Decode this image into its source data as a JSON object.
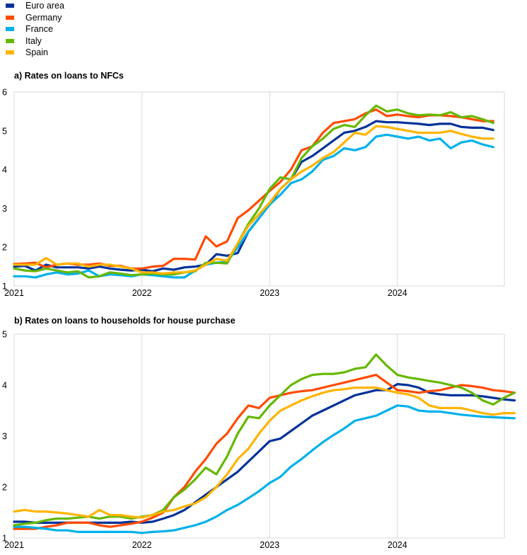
{
  "legend": [
    {
      "name": "Euro area",
      "color": "#003299"
    },
    {
      "name": "Germany",
      "color": "#FF4B00"
    },
    {
      "name": "France",
      "color": "#00B1EA"
    },
    {
      "name": "Italy",
      "color": "#65B800"
    },
    {
      "name": "Spain",
      "color": "#FFB400"
    }
  ],
  "chart_data": [
    {
      "type": "line",
      "title": "a) Rates on loans to NFCs",
      "xlabel": "",
      "ylabel": "",
      "ylim": [
        1,
        6
      ],
      "yticks": [
        1,
        2,
        3,
        4,
        5,
        6
      ],
      "xticks": [
        "2021",
        "2022",
        "2023",
        "2024"
      ],
      "x_start": "2021-01",
      "grid": "vertical",
      "series": [
        {
          "name": "Euro area",
          "color": "#003299",
          "values": [
            1.5,
            1.52,
            1.4,
            1.55,
            1.48,
            1.48,
            1.48,
            1.45,
            1.5,
            1.45,
            1.42,
            1.4,
            1.42,
            1.38,
            1.45,
            1.42,
            1.48,
            1.5,
            1.55,
            1.82,
            1.78,
            1.85,
            2.4,
            2.75,
            3.1,
            3.5,
            3.75,
            4.2,
            4.35,
            4.55,
            4.75,
            4.95,
            5.0,
            5.1,
            5.25,
            5.22,
            5.22,
            5.2,
            5.18,
            5.15,
            5.18,
            5.18,
            5.1,
            5.08,
            5.08,
            5.02
          ]
        },
        {
          "name": "Germany",
          "color": "#FF4B00",
          "values": [
            1.57,
            1.58,
            1.6,
            1.48,
            1.55,
            1.58,
            1.55,
            1.55,
            1.58,
            1.52,
            1.52,
            1.45,
            1.45,
            1.5,
            1.52,
            1.7,
            1.7,
            1.68,
            2.28,
            2.02,
            2.15,
            2.75,
            2.95,
            3.2,
            3.45,
            3.68,
            4.0,
            4.5,
            4.6,
            4.95,
            5.2,
            5.25,
            5.3,
            5.45,
            5.55,
            5.38,
            5.42,
            5.38,
            5.35,
            5.4,
            5.4,
            5.38,
            5.35,
            5.3,
            5.25,
            5.25
          ]
        },
        {
          "name": "France",
          "color": "#00B1EA",
          "values": [
            1.25,
            1.25,
            1.22,
            1.3,
            1.35,
            1.3,
            1.32,
            1.4,
            1.25,
            1.3,
            1.28,
            1.25,
            1.3,
            1.28,
            1.25,
            1.22,
            1.22,
            1.4,
            1.55,
            1.6,
            1.62,
            2.0,
            2.4,
            2.75,
            3.1,
            3.35,
            3.65,
            3.75,
            3.95,
            4.25,
            4.35,
            4.55,
            4.5,
            4.58,
            4.85,
            4.9,
            4.85,
            4.8,
            4.85,
            4.75,
            4.8,
            4.55,
            4.7,
            4.75,
            4.65,
            4.58
          ]
        },
        {
          "name": "Italy",
          "color": "#65B800",
          "values": [
            1.45,
            1.4,
            1.38,
            1.45,
            1.4,
            1.35,
            1.38,
            1.22,
            1.25,
            1.35,
            1.32,
            1.28,
            1.3,
            1.32,
            1.3,
            1.3,
            1.35,
            1.38,
            1.6,
            1.6,
            1.58,
            2.1,
            2.6,
            3.0,
            3.5,
            3.8,
            3.75,
            4.3,
            4.6,
            4.8,
            5.05,
            5.15,
            5.1,
            5.4,
            5.65,
            5.5,
            5.55,
            5.45,
            5.4,
            5.42,
            5.4,
            5.48,
            5.35,
            5.38,
            5.3,
            5.2
          ]
        },
        {
          "name": "Spain",
          "color": "#FFB400",
          "values": [
            1.55,
            1.55,
            1.55,
            1.72,
            1.55,
            1.58,
            1.58,
            1.5,
            1.55,
            1.55,
            1.5,
            1.45,
            1.35,
            1.35,
            1.32,
            1.35,
            1.35,
            1.4,
            1.55,
            1.7,
            1.65,
            2.1,
            2.55,
            2.85,
            3.15,
            3.5,
            3.75,
            3.95,
            4.1,
            4.3,
            4.45,
            4.7,
            4.95,
            4.9,
            5.12,
            5.1,
            5.05,
            5.0,
            4.95,
            4.95,
            4.95,
            5.0,
            4.92,
            4.85,
            4.8,
            4.8
          ]
        }
      ]
    },
    {
      "type": "line",
      "title": "b) Rates on loans to households for house purchase",
      "xlabel": "",
      "ylabel": "",
      "ylim": [
        1,
        5
      ],
      "yticks": [
        1,
        2,
        3,
        4,
        5
      ],
      "xticks": [
        "2021",
        "2022",
        "2023",
        "2024"
      ],
      "x_start": "2021-01",
      "grid": "vertical",
      "series": [
        {
          "name": "Euro area",
          "color": "#003299",
          "values": [
            1.32,
            1.32,
            1.3,
            1.3,
            1.3,
            1.3,
            1.3,
            1.3,
            1.3,
            1.3,
            1.3,
            1.32,
            1.3,
            1.32,
            1.38,
            1.45,
            1.55,
            1.7,
            1.85,
            2.0,
            2.15,
            2.3,
            2.5,
            2.7,
            2.9,
            2.95,
            3.1,
            3.25,
            3.4,
            3.5,
            3.6,
            3.7,
            3.8,
            3.85,
            3.9,
            3.9,
            4.02,
            4.0,
            3.95,
            3.85,
            3.82,
            3.8,
            3.8,
            3.8,
            3.78,
            3.75,
            3.72,
            3.7
          ]
        },
        {
          "name": "Germany",
          "color": "#FF4B00",
          "values": [
            1.18,
            1.18,
            1.18,
            1.22,
            1.25,
            1.3,
            1.3,
            1.3,
            1.25,
            1.22,
            1.25,
            1.28,
            1.32,
            1.4,
            1.5,
            1.8,
            2.0,
            2.3,
            2.55,
            2.85,
            3.05,
            3.35,
            3.6,
            3.55,
            3.75,
            3.8,
            3.85,
            3.88,
            3.9,
            3.95,
            4.0,
            4.05,
            4.1,
            4.15,
            4.2,
            4.05,
            3.9,
            3.88,
            3.85,
            3.88,
            3.9,
            3.95,
            4.0,
            3.98,
            3.95,
            3.9,
            3.88,
            3.85
          ]
        },
        {
          "name": "France",
          "color": "#00B1EA",
          "values": [
            1.22,
            1.22,
            1.2,
            1.18,
            1.15,
            1.15,
            1.12,
            1.12,
            1.12,
            1.12,
            1.12,
            1.12,
            1.1,
            1.12,
            1.13,
            1.15,
            1.2,
            1.25,
            1.32,
            1.42,
            1.55,
            1.65,
            1.78,
            1.92,
            2.08,
            2.2,
            2.4,
            2.55,
            2.72,
            2.88,
            3.02,
            3.15,
            3.3,
            3.35,
            3.4,
            3.5,
            3.6,
            3.58,
            3.5,
            3.48,
            3.48,
            3.45,
            3.42,
            3.4,
            3.38,
            3.37,
            3.36,
            3.35
          ]
        },
        {
          "name": "Italy",
          "color": "#65B800",
          "values": [
            1.25,
            1.28,
            1.3,
            1.35,
            1.38,
            1.38,
            1.4,
            1.42,
            1.38,
            1.42,
            1.42,
            1.38,
            1.42,
            1.45,
            1.55,
            1.8,
            1.95,
            2.15,
            2.38,
            2.25,
            2.6,
            3.05,
            3.38,
            3.35,
            3.6,
            3.8,
            4.0,
            4.12,
            4.2,
            4.22,
            4.22,
            4.25,
            4.32,
            4.35,
            4.6,
            4.38,
            4.2,
            4.15,
            4.12,
            4.08,
            4.05,
            4.0,
            3.95,
            3.85,
            3.7,
            3.62,
            3.75,
            3.85
          ]
        },
        {
          "name": "Spain",
          "color": "#FFB400",
          "values": [
            1.52,
            1.55,
            1.52,
            1.52,
            1.5,
            1.48,
            1.45,
            1.42,
            1.55,
            1.45,
            1.45,
            1.42,
            1.4,
            1.45,
            1.52,
            1.55,
            1.62,
            1.68,
            1.8,
            2.0,
            2.25,
            2.55,
            2.75,
            3.05,
            3.3,
            3.5,
            3.6,
            3.7,
            3.78,
            3.85,
            3.9,
            3.92,
            3.95,
            3.95,
            3.95,
            3.9,
            3.85,
            3.82,
            3.75,
            3.6,
            3.55,
            3.55,
            3.55,
            3.5,
            3.45,
            3.42,
            3.45,
            3.45
          ]
        }
      ]
    }
  ]
}
